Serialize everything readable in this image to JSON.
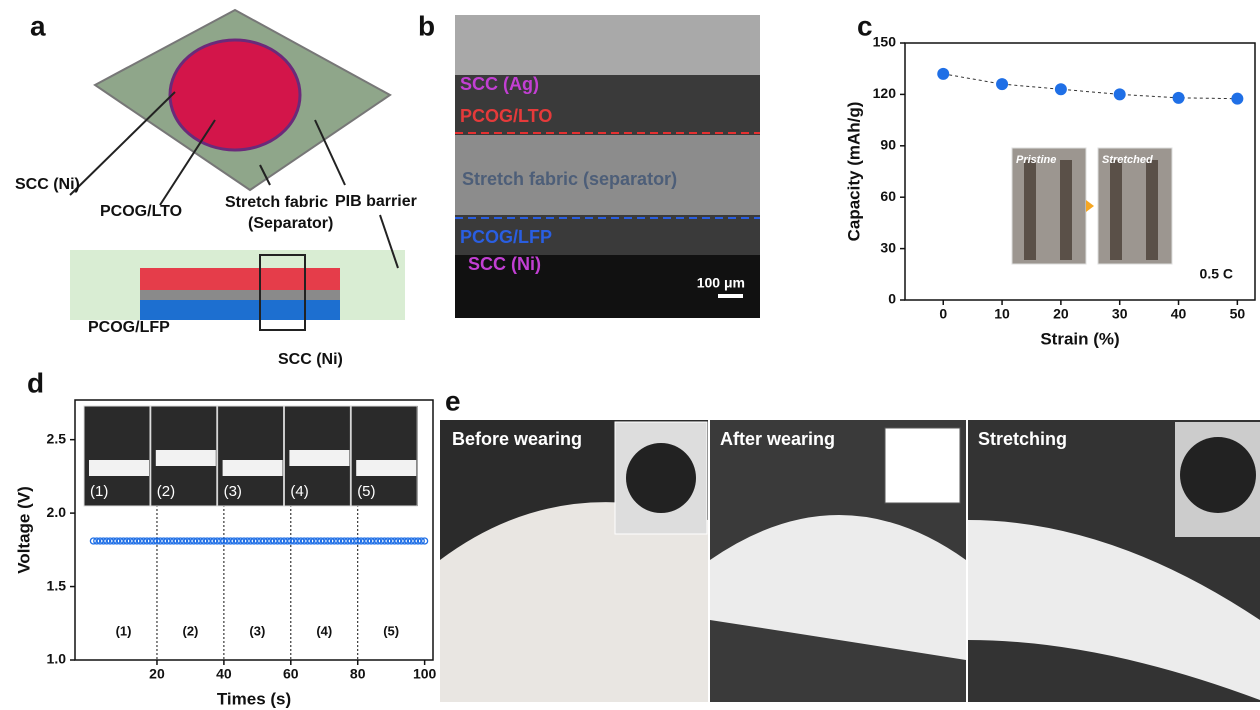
{
  "panels": {
    "a": {
      "label": "a",
      "annotations": [
        "SCC (Ni)",
        "PCOG/LTO",
        "Stretch fabric",
        "(Separator)",
        "PIB barrier",
        "PCOG/LFP",
        "SCC (Ni)"
      ]
    },
    "b": {
      "label": "b",
      "annotations": [
        "SCC (Ag)",
        "PCOG/LTO",
        "Stretch fabric (separator)",
        "PCOG/LFP",
        "SCC (Ni)"
      ],
      "scale_bar": "100 μm"
    },
    "e": {
      "label": "e",
      "captions": [
        "Before wearing",
        "After wearing",
        "Stretching"
      ]
    }
  },
  "chart_data": [
    {
      "type": "line",
      "panel_label": "c",
      "x_label": "Strain (%)",
      "y_label": "Capacity (mAh/g)",
      "x": [
        0,
        10,
        20,
        30,
        40,
        50
      ],
      "values": [
        132,
        126,
        123,
        120,
        118,
        117.5
      ],
      "color": "#1f6fe6",
      "xlim": [
        -6.5,
        53
      ],
      "ylim": [
        0,
        150
      ],
      "xticks": [
        0,
        10,
        20,
        30,
        40,
        50
      ],
      "yticks": [
        0,
        30,
        60,
        90,
        120,
        150
      ],
      "annotation": "0.5 C",
      "inset_labels": [
        "Pristine",
        "Stretched"
      ]
    },
    {
      "type": "line",
      "panel_label": "d",
      "x_label": "Times (s)",
      "y_label": "Voltage (V)",
      "x": [
        1,
        2,
        3,
        4,
        5,
        6,
        7,
        8,
        9,
        10,
        11,
        12,
        13,
        14,
        15,
        16,
        17,
        18,
        19,
        20,
        21,
        22,
        23,
        24,
        25,
        26,
        27,
        28,
        29,
        30,
        31,
        32,
        33,
        34,
        35,
        36,
        37,
        38,
        39,
        40,
        41,
        42,
        43,
        44,
        45,
        46,
        47,
        48,
        49,
        50,
        51,
        52,
        53,
        54,
        55,
        56,
        57,
        58,
        59,
        60,
        61,
        62,
        63,
        64,
        65,
        66,
        67,
        68,
        69,
        70,
        71,
        72,
        73,
        74,
        75,
        76,
        77,
        78,
        79,
        80,
        81,
        82,
        83,
        84,
        85,
        86,
        87,
        88,
        89,
        90,
        91,
        92,
        93,
        94,
        95,
        96,
        97,
        98,
        99,
        100
      ],
      "values": [
        1.81,
        1.81,
        1.81,
        1.81,
        1.81,
        1.81,
        1.81,
        1.81,
        1.81,
        1.81,
        1.81,
        1.81,
        1.81,
        1.81,
        1.81,
        1.81,
        1.81,
        1.81,
        1.81,
        1.81,
        1.81,
        1.81,
        1.81,
        1.81,
        1.81,
        1.81,
        1.81,
        1.81,
        1.81,
        1.81,
        1.81,
        1.81,
        1.81,
        1.81,
        1.81,
        1.81,
        1.81,
        1.81,
        1.81,
        1.81,
        1.81,
        1.81,
        1.81,
        1.81,
        1.81,
        1.81,
        1.81,
        1.81,
        1.81,
        1.81,
        1.81,
        1.81,
        1.81,
        1.81,
        1.81,
        1.81,
        1.81,
        1.81,
        1.81,
        1.81,
        1.81,
        1.81,
        1.81,
        1.81,
        1.81,
        1.81,
        1.81,
        1.81,
        1.81,
        1.81,
        1.81,
        1.81,
        1.81,
        1.81,
        1.81,
        1.81,
        1.81,
        1.81,
        1.81,
        1.81,
        1.81,
        1.81,
        1.81,
        1.81,
        1.81,
        1.81,
        1.81,
        1.81,
        1.81,
        1.81,
        1.81,
        1.81,
        1.81,
        1.81,
        1.81,
        1.81,
        1.81,
        1.81,
        1.81,
        1.81
      ],
      "color": "#1f6fe6",
      "xlim": [
        -4.5,
        102.5
      ],
      "ylim": [
        1.0,
        2.77
      ],
      "xticks": [
        20,
        40,
        60,
        80,
        100
      ],
      "yticks": [
        {
          "value": 1.0,
          "label": "1.0"
        },
        {
          "value": 1.5,
          "label": "1.5"
        },
        {
          "value": 2.0,
          "label": "2.0"
        },
        {
          "value": 2.5,
          "label": "2.5"
        }
      ],
      "vlines": [
        20,
        40,
        60,
        80
      ],
      "segment_labels": [
        "(1)",
        "(2)",
        "(3)",
        "(4)",
        "(5)"
      ],
      "inset_labels": [
        "(1)",
        "(2)",
        "(3)",
        "(4)",
        "(5)"
      ]
    }
  ]
}
